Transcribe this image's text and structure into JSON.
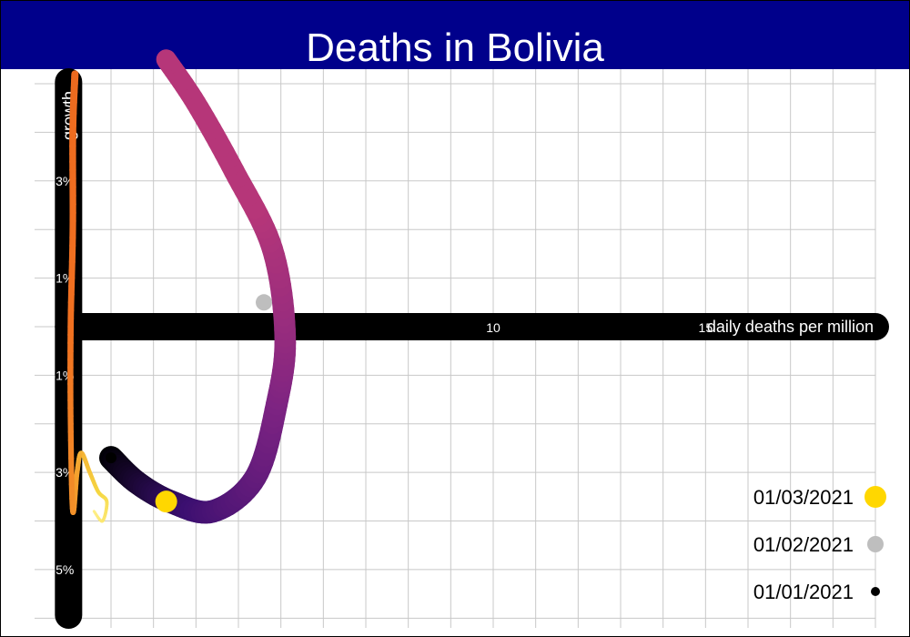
{
  "chart_data": {
    "type": "line",
    "title": "Deaths in Bolivia",
    "xlabel": "daily deaths per million",
    "ylabel": "growth",
    "x_ticks": [
      10,
      15
    ],
    "y_ticks": [
      "3%",
      "1%",
      "-1%",
      "-3%",
      "-5%"
    ],
    "y_tick_values": [
      3,
      1,
      -1,
      -3,
      -5
    ],
    "xlim": [
      -0.8,
      19
    ],
    "ylim": [
      -6.2,
      5.3
    ],
    "grid": true,
    "legend_position": "bottom-right",
    "legend": [
      {
        "label": "01/03/2021",
        "color": "#ffd700"
      },
      {
        "label": "01/02/2021",
        "color": "#bebebe"
      },
      {
        "label": "01/01/2021",
        "color": "#000000"
      }
    ],
    "series": [
      {
        "gradient": [
          "#fff08a",
          "#f5d742",
          "#f4a22e",
          "#f07020",
          "#ed6a1f"
        ],
        "points": [
          [
            0.6,
            -3.8
          ],
          [
            0.8,
            -4.0
          ],
          [
            0.9,
            -3.6
          ],
          [
            0.7,
            -3.4
          ],
          [
            0.5,
            -3.0
          ],
          [
            0.3,
            -2.6
          ],
          [
            0.2,
            -3.0
          ],
          [
            0.1,
            -3.8
          ],
          [
            0.05,
            -2.0
          ],
          [
            0.05,
            0.0
          ],
          [
            0.1,
            2.0
          ],
          [
            0.1,
            4.0
          ],
          [
            0.15,
            5.2
          ]
        ]
      },
      {
        "gradient": [
          "#000004",
          "#3b0f70",
          "#7c2382",
          "#b63679",
          "#b63679"
        ],
        "points": [
          [
            1.0,
            -2.7
          ],
          [
            1.6,
            -3.2
          ],
          [
            2.4,
            -3.6
          ],
          [
            3.4,
            -3.8
          ],
          [
            4.4,
            -3.1
          ],
          [
            4.9,
            -1.6
          ],
          [
            5.1,
            -0.2
          ],
          [
            4.8,
            1.6
          ],
          [
            3.9,
            3.2
          ],
          [
            3.0,
            4.6
          ],
          [
            2.3,
            5.5
          ]
        ]
      }
    ],
    "markers": [
      {
        "date": "01/01/2021",
        "x": 1.0,
        "y": -2.7,
        "color": "#000000"
      },
      {
        "date": "01/02/2021",
        "x": 4.6,
        "y": 0.5,
        "color": "#bebebe"
      },
      {
        "date": "01/03/2021",
        "x": 2.3,
        "y": -3.6,
        "color": "#ffd700"
      }
    ]
  }
}
